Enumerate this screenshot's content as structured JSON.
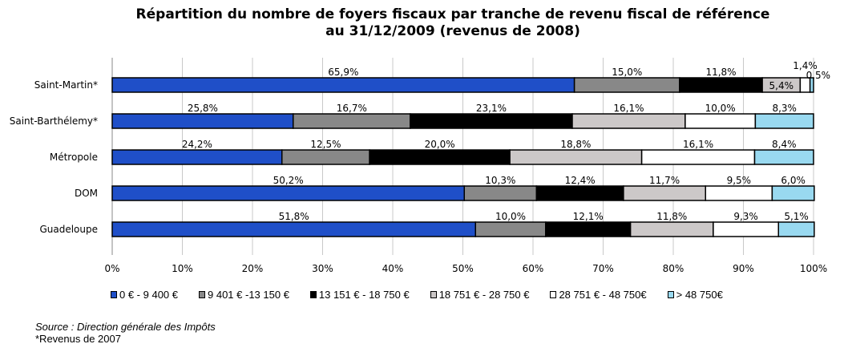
{
  "chart_data": {
    "type": "bar",
    "orientation": "horizontal",
    "stacked": "percent",
    "title_line1": "Répartition du nombre de foyers fiscaux par tranche de revenu fiscal de référence",
    "title_line2": "au 31/12/2009 (revenus de 2008)",
    "categories": [
      "Saint-Martin*",
      "Saint-Barthélemy*",
      "Métropole",
      "DOM",
      "Guadeloupe"
    ],
    "series": [
      {
        "name": "0 € - 9 400 €",
        "color": "#1F4FC8",
        "values": [
          65.9,
          25.8,
          24.2,
          50.2,
          51.8
        ]
      },
      {
        "name": "9 401 € -13 150 €",
        "color": "#888888",
        "values": [
          15.0,
          16.7,
          12.5,
          10.3,
          10.0
        ]
      },
      {
        "name": "13 151 € - 18 750 €",
        "color": "#000000",
        "values": [
          11.8,
          23.1,
          20.0,
          12.4,
          12.1
        ]
      },
      {
        "name": "18 751 € - 28 750 €",
        "color": "#CCC8C8",
        "values": [
          5.4,
          16.1,
          18.8,
          11.7,
          11.8
        ]
      },
      {
        "name": "28 751 € - 48 750€",
        "color": "#FFFFFF",
        "values": [
          1.4,
          10.0,
          16.1,
          9.5,
          9.3
        ]
      },
      {
        "name": "> 48 750€",
        "color": "#99D9F0",
        "values": [
          0.5,
          8.3,
          8.4,
          6.0,
          5.1
        ]
      }
    ],
    "xticks": [
      "0%",
      "10%",
      "20%",
      "30%",
      "40%",
      "50%",
      "60%",
      "70%",
      "80%",
      "90%",
      "100%"
    ],
    "xlim": [
      0,
      100
    ],
    "grid": "vertical",
    "legend": "bottom"
  },
  "source": "Source : Direction générale des Impôts",
  "note": "*Revenus de 2007"
}
